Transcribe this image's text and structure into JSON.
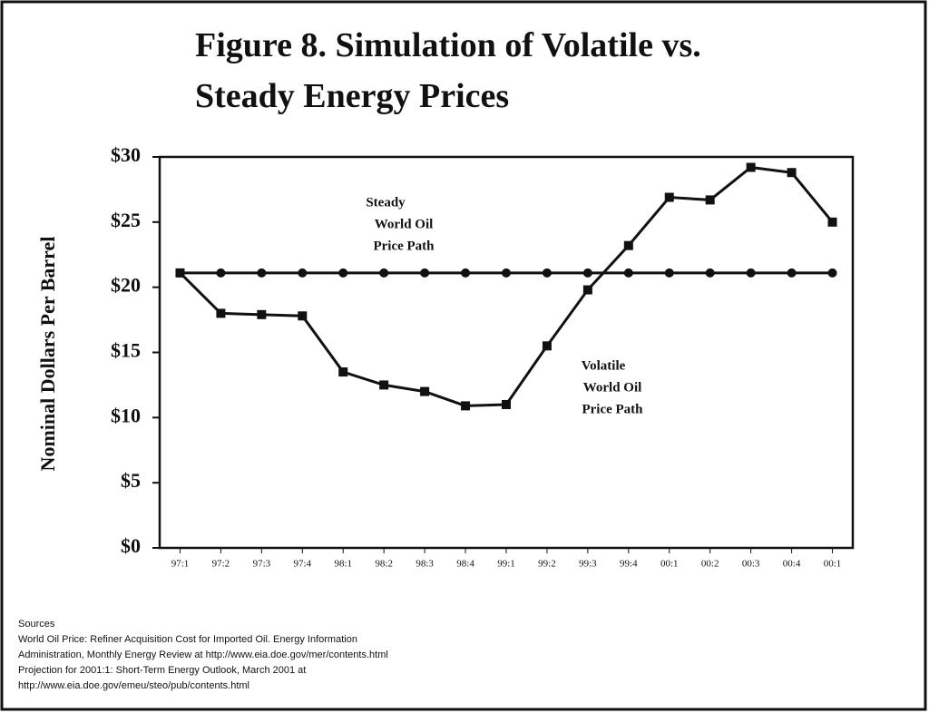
{
  "chart_data": {
    "type": "line",
    "title_lines": [
      "Figure 8. Simulation of Volatile vs.",
      "Steady Energy Prices"
    ],
    "y_label": "Nominal Dollars Per Barrel",
    "categories": [
      "97:1",
      "97:2",
      "97:3",
      "97:4",
      "98:1",
      "98:2",
      "98:3",
      "98:4",
      "99:1",
      "99:2",
      "99:3",
      "99:4",
      "00:1",
      "00:2",
      "00:3",
      "00:4",
      "00:1"
    ],
    "series": [
      {
        "name": "Volatile World Oil Price Path",
        "color": "#111111",
        "marker": "square",
        "values": [
          21.1,
          18.0,
          17.9,
          17.8,
          13.5,
          12.5,
          12.0,
          10.9,
          11.0,
          15.5,
          19.8,
          23.2,
          26.9,
          26.7,
          29.2,
          28.8,
          25.0
        ]
      },
      {
        "name": "Steady World Oil Price Path",
        "color": "#111111",
        "marker": "circle",
        "values": [
          21.1,
          21.1,
          21.1,
          21.1,
          21.1,
          21.1,
          21.1,
          21.1,
          21.1,
          21.1,
          21.1,
          21.1,
          21.1,
          21.1,
          21.1,
          21.1,
          21.1
        ]
      }
    ],
    "annotations": [
      {
        "lines": [
          "Steady",
          "World Oil",
          "Price Path"
        ]
      },
      {
        "lines": [
          "Volatile",
          "World Oil",
          "Price Path"
        ]
      }
    ],
    "ylim": [
      0,
      30
    ],
    "yticks": [
      {
        "value": 0,
        "label": "$0"
      },
      {
        "value": 5,
        "label": "$5"
      },
      {
        "value": 10,
        "label": "$10"
      },
      {
        "value": 15,
        "label": "$15"
      },
      {
        "value": 20,
        "label": "$20"
      },
      {
        "value": 25,
        "label": "$25"
      },
      {
        "value": 30,
        "label": "$30"
      }
    ],
    "sources": [
      "Sources",
      "World Oil Price: Refiner Acquisition Cost for Imported Oil. Energy Information",
      "Administration, Monthly Energy Review at http://www.eia.doe.gov/mer/contents.html",
      "Projection for 2001:1: Short-Term Energy Outlook, March 2001 at",
      "http://www.eia.doe.gov/emeu/steo/pub/contents.html"
    ]
  }
}
